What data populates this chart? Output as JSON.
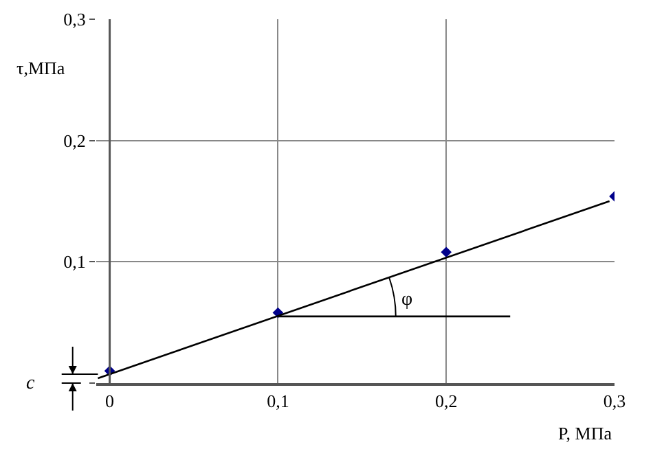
{
  "chart_data": {
    "type": "scatter",
    "xlabel": "P, МПа",
    "ylabel": "τ,МПа",
    "xlim": [
      -0.008,
      0.3
    ],
    "ylim": [
      0,
      0.3
    ],
    "xticks": [
      {
        "value": 0,
        "label": "0"
      },
      {
        "value": 0.1,
        "label": "0,1"
      },
      {
        "value": 0.2,
        "label": "0,2"
      },
      {
        "value": 0.3,
        "label": "0,3"
      }
    ],
    "yticks": [
      {
        "value": 0,
        "label": null
      },
      {
        "value": 0.1,
        "label": "0,1"
      },
      {
        "value": 0.2,
        "label": "0,2"
      },
      {
        "value": 0.3,
        "label": "0,3"
      }
    ],
    "grid": true,
    "marker": "diamond",
    "series": [
      {
        "type": "scatter",
        "color": "#00008b",
        "x": [
          0,
          0.1,
          0.2,
          0.3
        ],
        "values": [
          0.01,
          0.058,
          0.108,
          0.154
        ]
      },
      {
        "type": "line",
        "color": "#000000",
        "marker": "none",
        "x": [
          -0.007,
          0.297
        ],
        "values": [
          0.004,
          0.15
        ]
      },
      {
        "type": "line",
        "color": "#000000",
        "marker": "none",
        "x": [
          0.1,
          0.238
        ],
        "values": [
          0.055,
          0.055
        ]
      }
    ],
    "annotations": [
      "φ",
      "c"
    ]
  }
}
